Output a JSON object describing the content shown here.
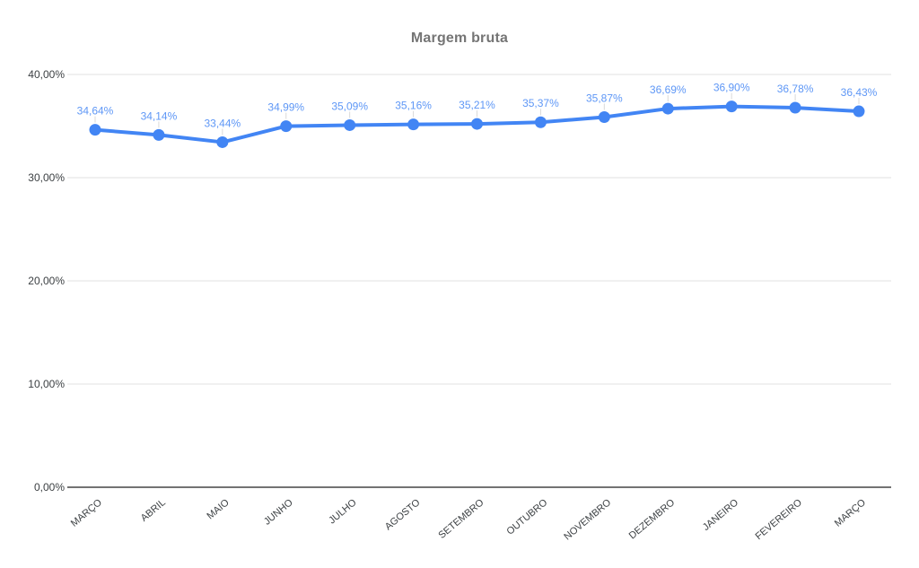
{
  "chart_data": {
    "type": "line",
    "title": "Margem bruta",
    "categories": [
      "MARÇO",
      "ABRIL",
      "MAIO",
      "JUNHO",
      "JULHO",
      "AGOSTO",
      "SETEMBRO",
      "OUTUBRO",
      "NOVEMBRO",
      "DEZEMBRO",
      "JANEIRO",
      "FEVEREIRO",
      "MARÇO"
    ],
    "values": [
      34.64,
      34.14,
      33.44,
      34.99,
      35.09,
      35.16,
      35.21,
      35.37,
      35.87,
      36.69,
      36.9,
      36.78,
      36.43
    ],
    "point_labels": [
      "34,64%",
      "34,14%",
      "33,44%",
      "34,99%",
      "35,09%",
      "35,16%",
      "35,21%",
      "35,37%",
      "35,87%",
      "36,69%",
      "36,90%",
      "36,78%",
      "36,43%"
    ],
    "y_tick_labels": [
      "0,00%",
      "10,00%",
      "20,00%",
      "30,00%",
      "40,00%"
    ],
    "ylim": [
      0,
      40
    ],
    "xlabel": "",
    "ylabel": "",
    "grid": true,
    "legend_position": "none",
    "colors": {
      "series_line": "#4285f4",
      "data_label": "#5e97f6",
      "gridline": "#e0e0e0",
      "baseline": "#737373",
      "leader_line": "#d9d9d9",
      "axis_label": "#3c4043",
      "title": "#757575"
    }
  }
}
